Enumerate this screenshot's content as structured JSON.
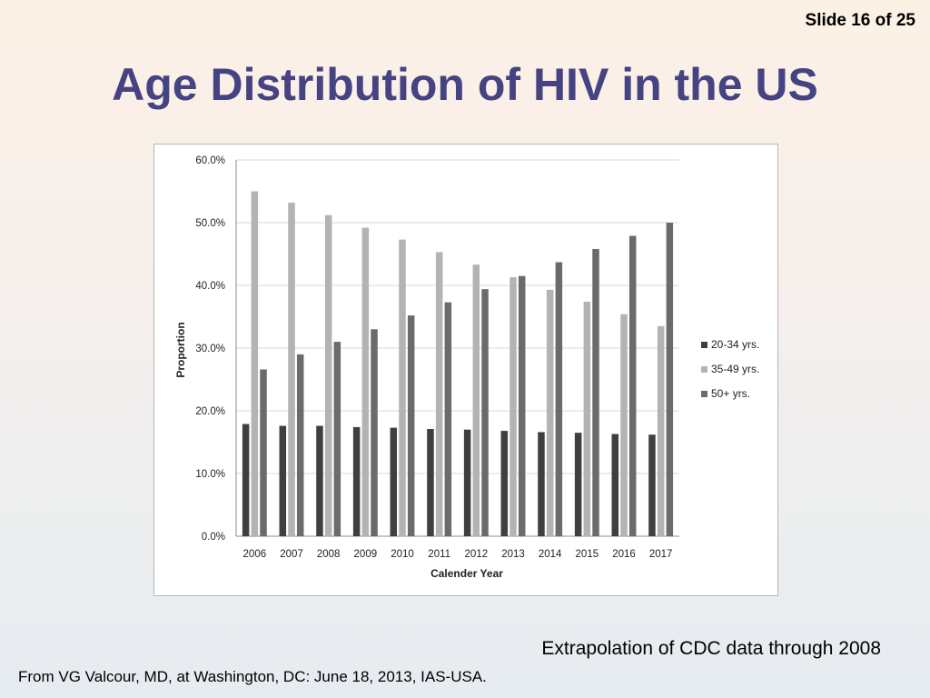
{
  "slide": {
    "number_label": "Slide 16 of 25",
    "title": "Age Distribution of HIV in the US",
    "caption": "Extrapolation of CDC data through 2008",
    "source": "From VG Valcour, MD, at Washington, DC: June 18, 2013, IAS-USA."
  },
  "chart_data": {
    "type": "bar",
    "title": "",
    "xlabel": "Calender Year",
    "ylabel": "Proportion",
    "categories": [
      "2006",
      "2007",
      "2008",
      "2009",
      "2010",
      "2011",
      "2012",
      "2013",
      "2014",
      "2015",
      "2016",
      "2017"
    ],
    "y_ticks": [
      "0.0%",
      "10.0%",
      "20.0%",
      "30.0%",
      "40.0%",
      "50.0%",
      "60.0%"
    ],
    "ylim": [
      0,
      60
    ],
    "grid": true,
    "legend_position": "right",
    "series": [
      {
        "name": "20-34 yrs.",
        "color": "#3f3f3f",
        "values": [
          17.9,
          17.6,
          17.6,
          17.4,
          17.3,
          17.1,
          17.0,
          16.8,
          16.6,
          16.5,
          16.3,
          16.2
        ]
      },
      {
        "name": "35-49 yrs.",
        "color": "#b3b3b3",
        "values": [
          55.0,
          53.2,
          51.2,
          49.2,
          47.3,
          45.3,
          43.3,
          41.3,
          39.3,
          37.4,
          35.4,
          33.5
        ]
      },
      {
        "name": "50+ yrs.",
        "color": "#6b6b6b",
        "values": [
          26.6,
          29.0,
          31.0,
          33.0,
          35.2,
          37.3,
          39.4,
          41.5,
          43.7,
          45.8,
          47.9,
          50.0
        ]
      }
    ]
  }
}
